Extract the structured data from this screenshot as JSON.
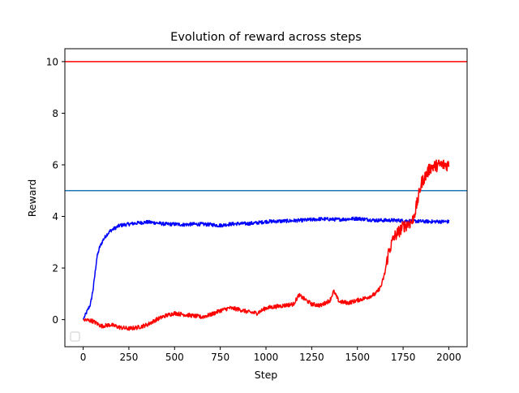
{
  "chart_data": {
    "type": "line",
    "title": "Evolution of reward across steps",
    "xlabel": "Step",
    "ylabel": "Reward",
    "xlim": [
      -100,
      2100
    ],
    "ylim": [
      -1.05,
      10.5
    ],
    "x_ticks": [
      0,
      250,
      500,
      750,
      1000,
      1250,
      1500,
      1750,
      2000
    ],
    "y_ticks": [
      0,
      2,
      4,
      6,
      8,
      10
    ],
    "grid": false,
    "legend": {
      "placement": "lower-left",
      "entries": []
    },
    "hlines": [
      {
        "y": 10,
        "color": "#ff0000"
      },
      {
        "y": 5,
        "color": "#1f77b4"
      }
    ],
    "series": [
      {
        "color": "#0000ff",
        "noise": 0.07,
        "x": [
          0,
          20,
          40,
          55,
          65,
          75,
          90,
          110,
          130,
          150,
          175,
          200,
          250,
          300,
          350,
          400,
          450,
          500,
          550,
          600,
          650,
          700,
          750,
          800,
          850,
          900,
          950,
          1000,
          1100,
          1200,
          1300,
          1400,
          1500,
          1600,
          1700,
          1800,
          1900,
          2000
        ],
        "y": [
          0.0,
          0.3,
          0.6,
          1.2,
          1.8,
          2.4,
          2.8,
          3.1,
          3.3,
          3.45,
          3.55,
          3.65,
          3.7,
          3.75,
          3.78,
          3.75,
          3.7,
          3.7,
          3.68,
          3.7,
          3.7,
          3.68,
          3.65,
          3.7,
          3.72,
          3.72,
          3.75,
          3.8,
          3.82,
          3.85,
          3.9,
          3.88,
          3.92,
          3.85,
          3.85,
          3.82,
          3.8,
          3.8
        ]
      },
      {
        "color": "#ff0000",
        "noise": 0.08,
        "x": [
          0,
          50,
          100,
          150,
          200,
          250,
          300,
          350,
          400,
          450,
          500,
          550,
          600,
          650,
          700,
          750,
          800,
          850,
          900,
          950,
          1000,
          1050,
          1100,
          1150,
          1180,
          1250,
          1300,
          1350,
          1370,
          1400,
          1450,
          1500,
          1550,
          1600,
          1630,
          1650,
          1670,
          1700,
          1750,
          1800,
          1820,
          1850,
          1900,
          1950,
          2000
        ],
        "y": [
          0.0,
          -0.05,
          -0.25,
          -0.2,
          -0.3,
          -0.35,
          -0.3,
          -0.2,
          0.0,
          0.15,
          0.25,
          0.2,
          0.15,
          0.1,
          0.2,
          0.35,
          0.45,
          0.4,
          0.3,
          0.25,
          0.45,
          0.5,
          0.55,
          0.6,
          0.95,
          0.6,
          0.55,
          0.75,
          1.1,
          0.7,
          0.65,
          0.75,
          0.85,
          1.0,
          1.3,
          1.8,
          2.6,
          3.2,
          3.6,
          3.8,
          4.3,
          5.3,
          5.9,
          6.0,
          6.0
        ]
      }
    ]
  }
}
